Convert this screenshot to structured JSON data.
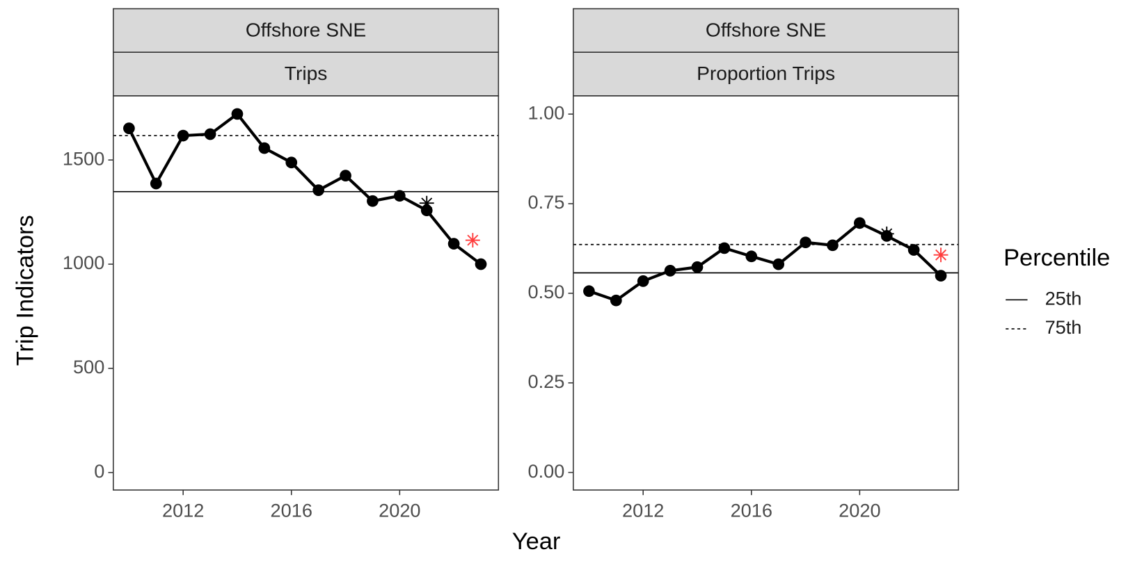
{
  "x_label": "Year",
  "y_label": "Trip Indicators",
  "legend": {
    "title": "Percentile"
  },
  "chart_data": [
    {
      "type": "line",
      "strip": [
        "Offshore SNE",
        "Trips"
      ],
      "x": [
        2010,
        2011,
        2012,
        2013,
        2014,
        2015,
        2016,
        2017,
        2018,
        2019,
        2020,
        2021,
        2022,
        2023
      ],
      "values": [
        1652,
        1387,
        1617,
        1624,
        1721,
        1557,
        1488,
        1355,
        1425,
        1303,
        1328,
        1258,
        1098,
        1000
      ],
      "color": "#000000",
      "reference_lines": [
        {
          "name": "25th",
          "value": 1348,
          "dash": false
        },
        {
          "name": "75th",
          "value": 1617,
          "dash": true
        }
      ],
      "markers": [
        {
          "x": 2021,
          "y": 1293,
          "color": "#000000"
        },
        {
          "x": 2022.7,
          "y": 1115,
          "color": "#ff3b3b"
        }
      ],
      "xlim": [
        2009.42,
        2023.65
      ],
      "xticks": [
        2012,
        2016,
        2020
      ],
      "ylim": [
        -84,
        1808
      ],
      "yticks": [
        0,
        500,
        1000,
        1500
      ]
    },
    {
      "type": "line",
      "strip": [
        "Offshore SNE",
        "Proportion Trips"
      ],
      "x": [
        2010,
        2011,
        2012,
        2013,
        2014,
        2015,
        2016,
        2017,
        2018,
        2019,
        2020,
        2021,
        2022,
        2023
      ],
      "values": [
        0.506,
        0.48,
        0.534,
        0.563,
        0.573,
        0.626,
        0.603,
        0.581,
        0.642,
        0.634,
        0.696,
        0.66,
        0.621,
        0.549
      ],
      "color": "#000000",
      "reference_lines": [
        {
          "name": "25th",
          "value": 0.557,
          "dash": false
        },
        {
          "name": "75th",
          "value": 0.636,
          "dash": true
        }
      ],
      "markers": [
        {
          "x": 2021,
          "y": 0.666,
          "color": "#000000"
        },
        {
          "x": 2023,
          "y": 0.607,
          "color": "#ff3b3b"
        }
      ],
      "xlim": [
        2009.42,
        2023.65
      ],
      "xticks": [
        2012,
        2016,
        2020
      ],
      "ylim": [
        -0.049,
        1.051
      ],
      "yticks": [
        {
          "value": 0,
          "label": "0.00"
        },
        {
          "value": 0.25,
          "label": "0.25"
        },
        {
          "value": 0.5,
          "label": "0.50"
        },
        {
          "value": 0.75,
          "label": "0.75"
        },
        {
          "value": 1,
          "label": "1.00"
        }
      ]
    }
  ]
}
